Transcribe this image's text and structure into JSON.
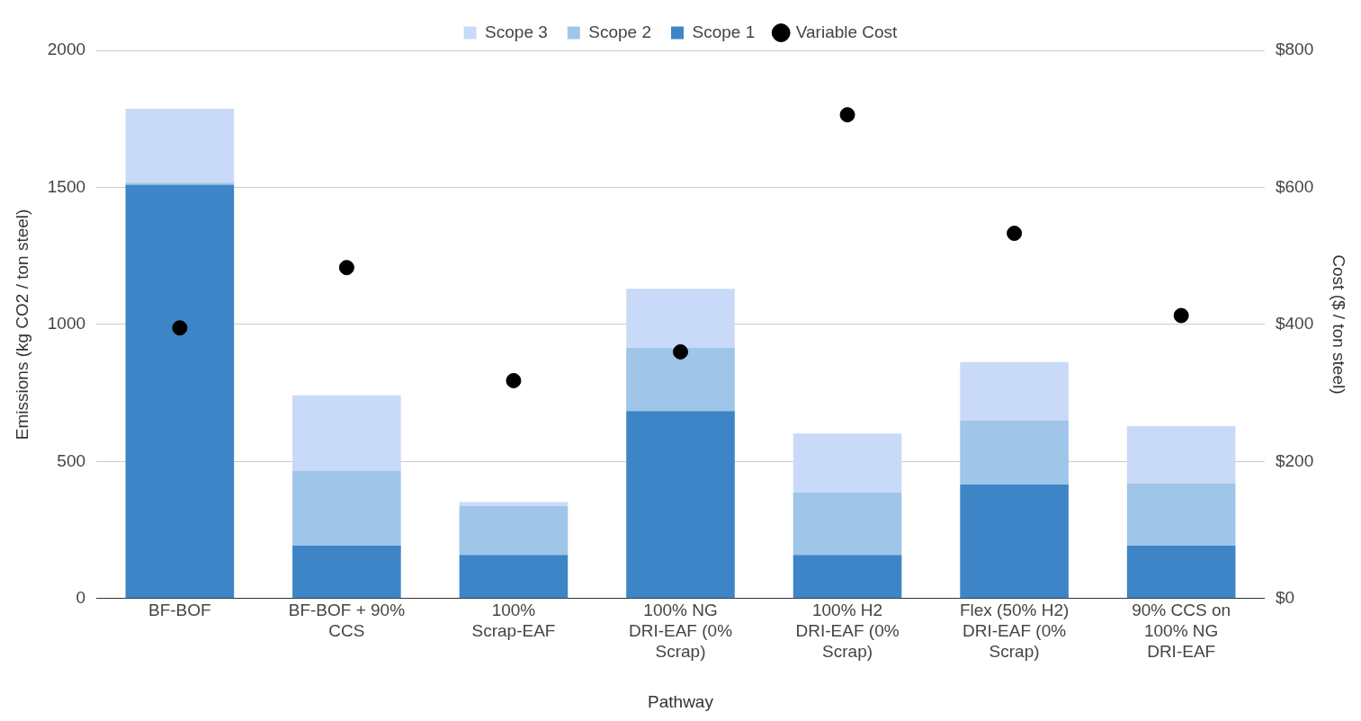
{
  "chart_data": {
    "type": "bar",
    "stacked": true,
    "xlabel": "Pathway",
    "ylabel": "Emissions (kg CO2 / ton steel)",
    "y2label": "Cost ($ / ton steel)",
    "categories": [
      "BF-BOF",
      "BF-BOF + 90% CCS",
      "100% Scrap-EAF",
      "100% NG DRI-EAF (0% Scrap)",
      "100% H2 DRI-EAF (0% Scrap)",
      "Flex (50% H2) DRI-EAF (0% Scrap)",
      "90% CCS on 100% NG DRI-EAF"
    ],
    "series": [
      {
        "name": "Scope 1",
        "color": "#3d85c6",
        "values": [
          1510,
          193,
          159,
          684,
          159,
          416,
          193
        ]
      },
      {
        "name": "Scope 2",
        "color": "#9fc5e8",
        "values": [
          7,
          274,
          179,
          230,
          227,
          234,
          227
        ]
      },
      {
        "name": "Scope 3",
        "color": "#c9daf8",
        "values": [
          270,
          274,
          14,
          216,
          216,
          213,
          209
        ]
      },
      {
        "name": "Variable Cost",
        "type": "scatter",
        "axis": "y2",
        "color": "#000000",
        "values": [
          395,
          483,
          318,
          360,
          706,
          533,
          413
        ]
      }
    ],
    "ylim": [
      0,
      2000
    ],
    "yticks": [
      0,
      500,
      1000,
      1500,
      2000
    ],
    "y2lim": [
      0,
      800
    ],
    "y2ticks": [
      {
        "value": 0,
        "label": "$0"
      },
      {
        "value": 200,
        "label": "$200"
      },
      {
        "value": 400,
        "label": "$400"
      },
      {
        "value": 600,
        "label": "$600"
      },
      {
        "value": 800,
        "label": "$800"
      }
    ],
    "grid": "y",
    "legend": "top",
    "marker": "circle"
  }
}
